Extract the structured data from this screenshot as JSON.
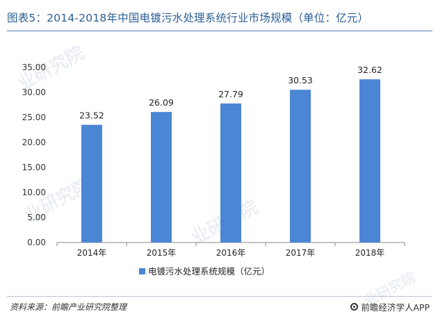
{
  "title": "图表5：2014-2018年中国电镀污水处理系统行业市场规模（单位：亿元）",
  "source": "资料来源：前瞻产业研究院整理",
  "brand": "前瞻经济学人APP",
  "watermark": "业研究院",
  "colors": {
    "bar": "#4a86d4",
    "title": "#2a5e96",
    "axis": "#888888"
  },
  "chart_data": {
    "type": "bar",
    "categories": [
      "2014年",
      "2015年",
      "2016年",
      "2017年",
      "2018年"
    ],
    "series": [
      {
        "name": "电镀污水处理系统规模（亿元）",
        "values": [
          23.52,
          26.09,
          27.79,
          30.53,
          32.62
        ]
      }
    ],
    "value_labels": [
      "23.52",
      "26.09",
      "27.79",
      "30.53",
      "32.62"
    ],
    "y_ticks": [
      "0.00",
      "5.00",
      "10.00",
      "15.00",
      "20.00",
      "25.00",
      "30.00",
      "35.00"
    ],
    "ylim": [
      0,
      35
    ],
    "grid": false,
    "legend": "bottom"
  }
}
